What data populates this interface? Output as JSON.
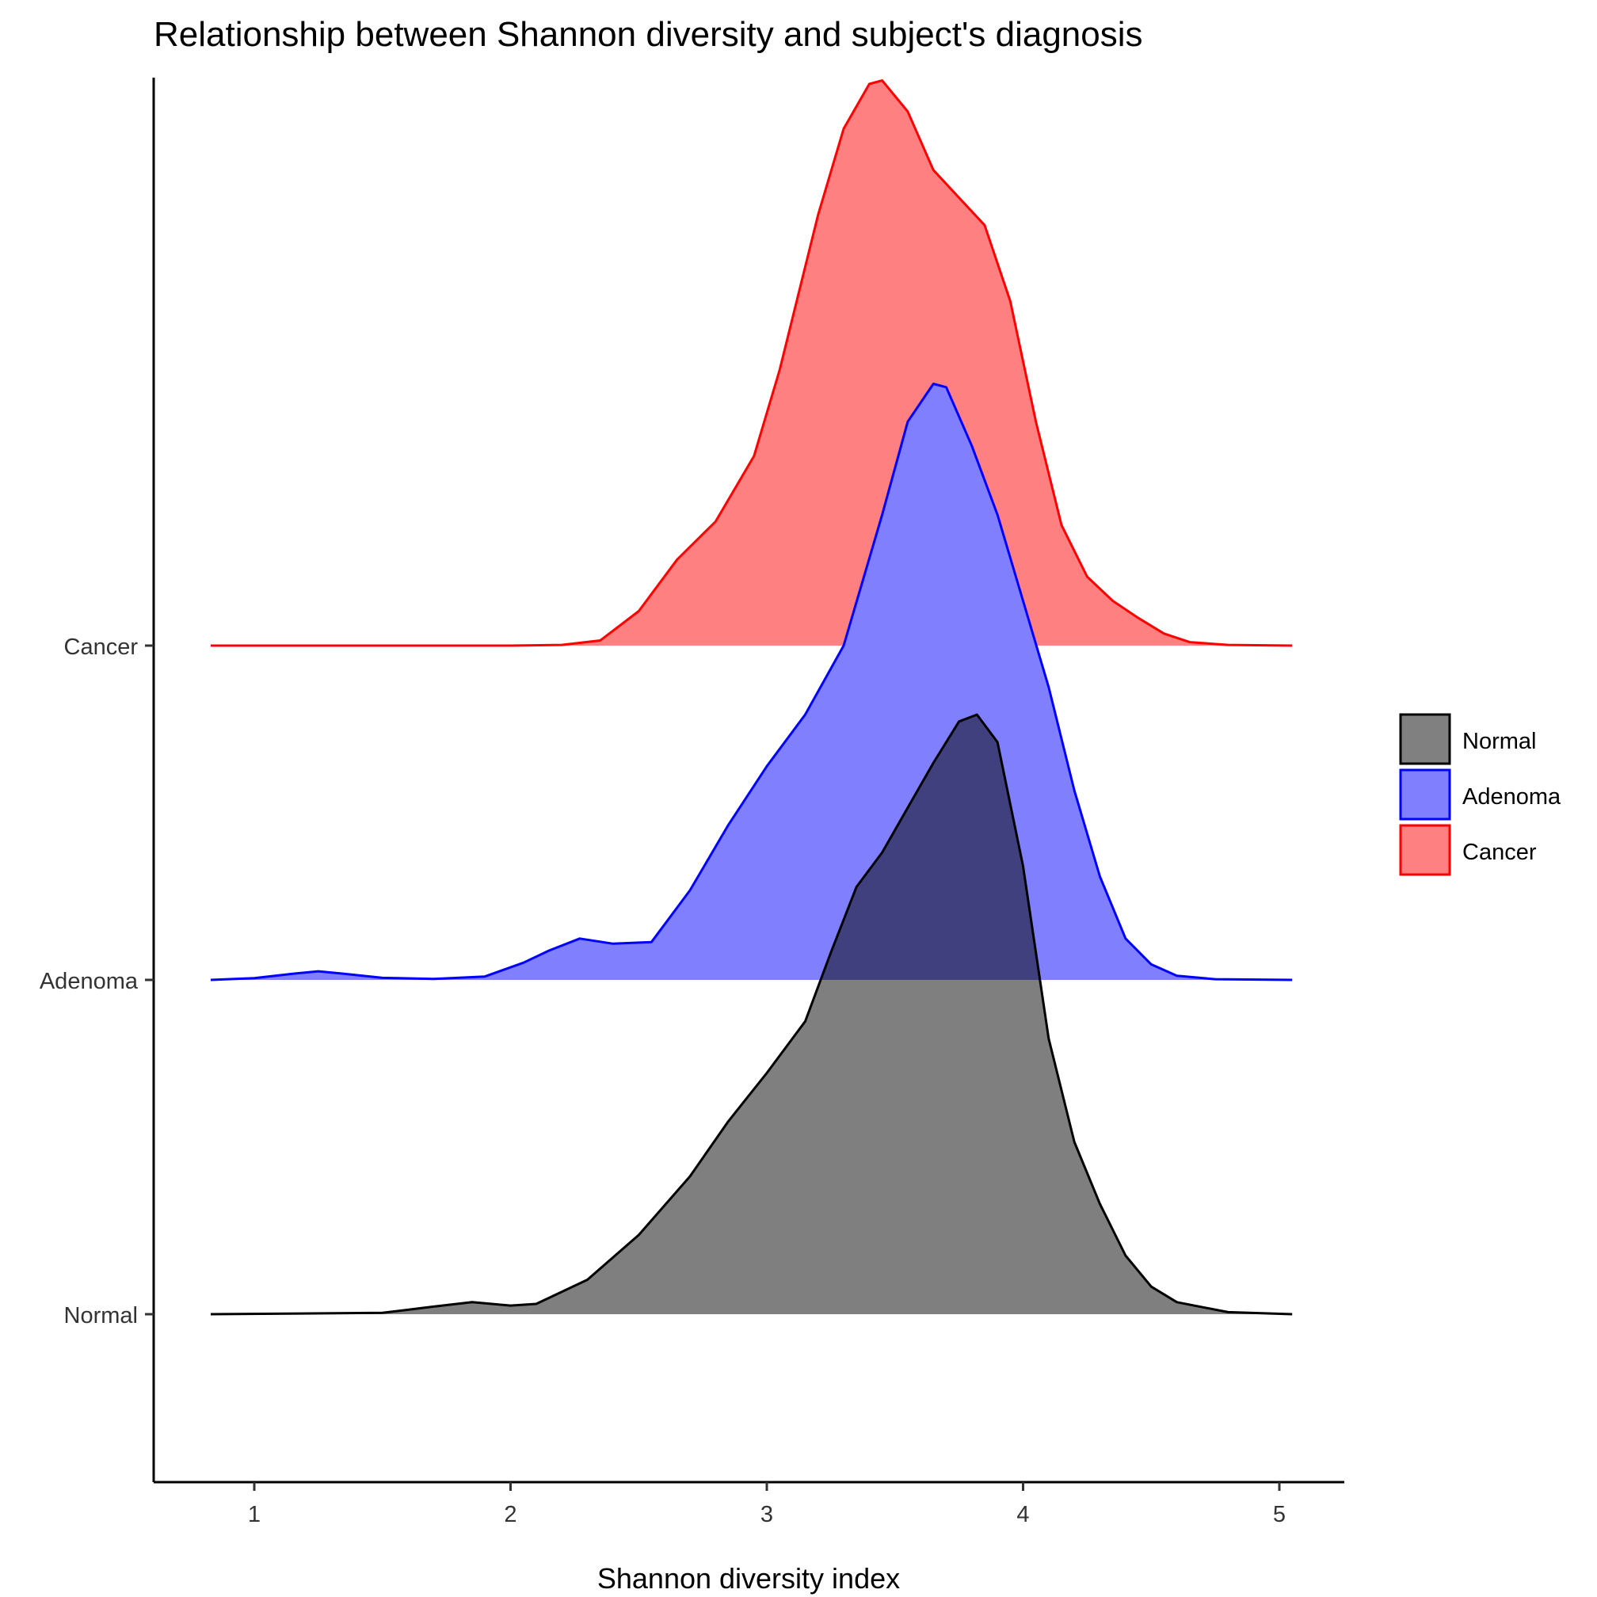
{
  "chart_data": {
    "type": "area",
    "subtype": "ridgeline-density",
    "title": "Relationship between Shannon diversity and subject's diagnosis",
    "xlabel": "Shannon diversity index",
    "ylabel": "",
    "xlim": [
      0.6,
      5.25
    ],
    "x_ticks": [
      "1",
      "2",
      "3",
      "4",
      "5"
    ],
    "x_tick_values": [
      1,
      2,
      3,
      4,
      5
    ],
    "y_categories": [
      "Normal",
      "Adenoma",
      "Cancer"
    ],
    "grid": false,
    "legend_position": "right",
    "legend": [
      {
        "label": "Normal",
        "fill": "#808080",
        "stroke": "#000000"
      },
      {
        "label": "Adenoma",
        "fill": "#8080ff",
        "stroke": "#0000ff"
      },
      {
        "label": "Cancer",
        "fill": "#ff8080",
        "stroke": "#ff0000"
      }
    ],
    "series": [
      {
        "name": "Cancer",
        "category": "Cancer",
        "fill": "#ff8080",
        "stroke": "#ff0000",
        "fill_opacity": 1,
        "x": [
          0.83,
          1.5,
          2.0,
          2.2,
          2.35,
          2.5,
          2.65,
          2.8,
          2.95,
          3.05,
          3.2,
          3.3,
          3.4,
          3.45,
          3.55,
          3.65,
          3.75,
          3.85,
          3.95,
          4.05,
          4.15,
          4.25,
          4.35,
          4.45,
          4.55,
          4.65,
          4.8,
          5.05
        ],
        "y": [
          0.0,
          0.0,
          0.0,
          0.002,
          0.015,
          0.1,
          0.25,
          0.36,
          0.55,
          0.8,
          1.25,
          1.5,
          1.63,
          1.64,
          1.55,
          1.38,
          1.3,
          1.22,
          1.0,
          0.65,
          0.35,
          0.2,
          0.13,
          0.08,
          0.035,
          0.01,
          0.002,
          0.0
        ]
      },
      {
        "name": "Adenoma",
        "category": "Adenoma",
        "fill": "#8080ff",
        "stroke": "#0000ff",
        "fill_opacity": 1,
        "x": [
          0.83,
          1.0,
          1.15,
          1.25,
          1.35,
          1.5,
          1.7,
          1.9,
          2.05,
          2.15,
          2.27,
          2.4,
          2.55,
          2.7,
          2.85,
          3.0,
          3.15,
          3.3,
          3.45,
          3.55,
          3.65,
          3.7,
          3.8,
          3.9,
          4.0,
          4.1,
          4.2,
          4.3,
          4.4,
          4.5,
          4.6,
          4.75,
          5.05
        ],
        "y": [
          0.0,
          0.005,
          0.018,
          0.025,
          0.018,
          0.006,
          0.003,
          0.01,
          0.05,
          0.085,
          0.12,
          0.105,
          0.11,
          0.26,
          0.45,
          0.62,
          0.77,
          0.97,
          1.35,
          1.62,
          1.73,
          1.72,
          1.55,
          1.35,
          1.1,
          0.85,
          0.55,
          0.3,
          0.12,
          0.045,
          0.012,
          0.002,
          0.0
        ]
      },
      {
        "name": "Normal",
        "category": "Normal",
        "fill": "#000000",
        "stroke": "#000000",
        "fill_opacity": 0.5,
        "x": [
          0.83,
          1.5,
          1.7,
          1.85,
          2.0,
          2.1,
          2.3,
          2.5,
          2.7,
          2.85,
          3.0,
          3.15,
          3.25,
          3.35,
          3.45,
          3.55,
          3.65,
          3.75,
          3.82,
          3.9,
          4.0,
          4.1,
          4.2,
          4.3,
          4.4,
          4.5,
          4.6,
          4.8,
          5.05
        ],
        "y": [
          0.0,
          0.004,
          0.022,
          0.035,
          0.025,
          0.03,
          0.1,
          0.23,
          0.4,
          0.56,
          0.7,
          0.85,
          1.05,
          1.24,
          1.34,
          1.47,
          1.6,
          1.72,
          1.74,
          1.66,
          1.3,
          0.8,
          0.5,
          0.32,
          0.17,
          0.08,
          0.035,
          0.006,
          0.0
        ]
      }
    ]
  }
}
